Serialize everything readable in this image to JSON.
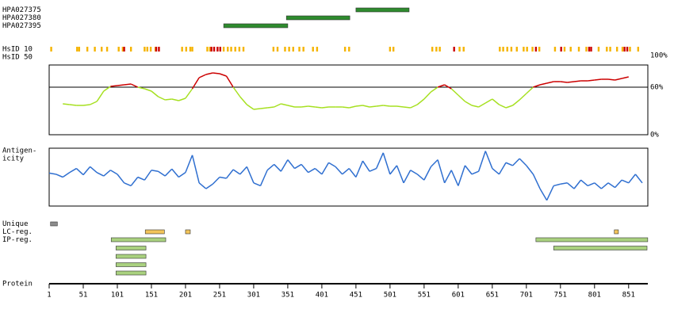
{
  "chart_data": [
    {
      "type": "ranges",
      "rows": [
        {
          "name": "HPA027375",
          "color": "#2e8b2e",
          "ranges": [
            [
              451,
              529
            ]
          ]
        },
        {
          "name": "HPA027380",
          "color": "#2e8b2e",
          "ranges": [
            [
              349,
              442
            ]
          ]
        },
        {
          "type": "x",
          "name": "HPA027395",
          "color": "#2e8b2e",
          "ranges": [
            [
              257,
              351
            ]
          ]
        }
      ]
    },
    {
      "type": "strip",
      "title": "HsID 10",
      "series": [
        {
          "color": "#f5b400",
          "values": [
            4,
            42,
            45,
            57,
            68,
            78,
            86,
            103,
            109,
            121,
            141,
            145,
            150,
            157,
            196,
            202,
            208,
            211,
            233,
            237,
            257,
            263,
            268,
            274,
            280,
            286,
            330,
            336,
            347,
            353,
            359,
            368,
            374,
            388,
            394,
            435,
            441,
            501,
            506,
            563,
            569,
            574,
            603,
            609,
            662,
            667,
            673,
            679,
            687,
            697,
            702,
            710,
            720,
            743,
            757,
            766,
            778,
            789,
            807,
            819,
            824,
            834,
            842,
            853,
            865
          ]
        },
        {
          "color": "#cc0000",
          "values": [
            111,
            158,
            162,
            239,
            243,
            248,
            252,
            595,
            715,
            752,
            793,
            796,
            845,
            849
          ]
        }
      ]
    },
    {
      "type": "line",
      "title": "HsID 50",
      "ylim": [
        0,
        100
      ],
      "yticks": [
        {
          "value": 100,
          "label": "100%"
        },
        {
          "value": 60,
          "label": "60%"
        },
        {
          "value": 0,
          "label": "0%"
        }
      ],
      "colors": [
        "#cc0000",
        "#a6e020"
      ],
      "x": [
        21,
        31,
        41,
        51,
        61,
        71,
        81,
        91,
        101,
        111,
        121,
        131,
        141,
        151,
        161,
        171,
        181,
        191,
        201,
        211,
        221,
        231,
        241,
        251,
        261,
        271,
        281,
        291,
        301,
        311,
        321,
        331,
        341,
        351,
        361,
        371,
        381,
        391,
        401,
        411,
        421,
        431,
        441,
        451,
        461,
        471,
        481,
        491,
        501,
        511,
        521,
        531,
        541,
        551,
        561,
        571,
        581,
        591,
        601,
        611,
        621,
        631,
        641,
        651,
        661,
        671,
        681,
        691,
        701,
        711,
        721,
        731,
        741,
        751,
        761,
        771,
        781,
        791,
        801,
        811,
        821,
        831,
        841,
        851
      ],
      "values": [
        39,
        38,
        37,
        37,
        38,
        42,
        55,
        61,
        62,
        63,
        64,
        60,
        58,
        55,
        48,
        44,
        45,
        43,
        46,
        58,
        72,
        76,
        78,
        77,
        74,
        60,
        48,
        38,
        32,
        33,
        34,
        35,
        39,
        37,
        35,
        35,
        36,
        35,
        34,
        35,
        35,
        35,
        34,
        36,
        37,
        35,
        36,
        37,
        36,
        36,
        35,
        34,
        38,
        45,
        54,
        60,
        63,
        58,
        50,
        42,
        37,
        35,
        40,
        45,
        38,
        34,
        37,
        44,
        52,
        60,
        63,
        65,
        67,
        67,
        66,
        67,
        68,
        68,
        69,
        70,
        70,
        69,
        71,
        73
      ]
    },
    {
      "type": "line",
      "title": [
        "Antigen-",
        "icity"
      ],
      "ylim": [
        0,
        100
      ],
      "color": "#2f6fd0",
      "x": [
        1,
        11,
        21,
        31,
        41,
        51,
        61,
        71,
        81,
        91,
        101,
        111,
        121,
        131,
        141,
        151,
        161,
        171,
        181,
        191,
        201,
        211,
        221,
        231,
        241,
        251,
        261,
        271,
        281,
        291,
        301,
        311,
        321,
        331,
        341,
        351,
        361,
        371,
        381,
        391,
        401,
        411,
        421,
        431,
        441,
        451,
        461,
        471,
        481,
        491,
        501,
        511,
        521,
        531,
        541,
        551,
        561,
        571,
        581,
        591,
        601,
        611,
        621,
        631,
        641,
        651,
        661,
        671,
        681,
        691,
        701,
        711,
        721,
        731,
        741,
        751,
        761,
        771,
        781,
        791,
        801,
        811,
        821,
        831,
        841,
        851,
        861,
        871
      ],
      "values": [
        57,
        55,
        50,
        58,
        65,
        54,
        68,
        58,
        52,
        62,
        55,
        40,
        35,
        50,
        45,
        62,
        60,
        52,
        64,
        50,
        58,
        88,
        40,
        30,
        38,
        50,
        48,
        63,
        55,
        68,
        40,
        35,
        62,
        72,
        60,
        80,
        65,
        72,
        58,
        65,
        55,
        75,
        68,
        55,
        65,
        50,
        78,
        60,
        65,
        92,
        55,
        70,
        40,
        62,
        55,
        45,
        68,
        80,
        40,
        62,
        35,
        70,
        55,
        60,
        95,
        65,
        55,
        75,
        70,
        82,
        70,
        55,
        30,
        10,
        35,
        38,
        40,
        30,
        45,
        35,
        40,
        30,
        40,
        32,
        45,
        40,
        55,
        40
      ]
    },
    {
      "type": "ranges",
      "rows": [
        {
          "name": "Unique",
          "color": "#8c8c8c",
          "ranges": [
            [
              3,
              13
            ]
          ]
        },
        {
          "name": "LC-reg.",
          "color": "#f2c45a",
          "ranges": [
            [
              142,
              170
            ],
            [
              201,
              208
            ],
            [
              830,
              836
            ]
          ]
        },
        {
          "name": "IP-reg.",
          "color": "#a9d17f",
          "ranges": [
            [
              92,
              172
            ],
            [
              99,
              143
            ],
            [
              99,
              143
            ],
            [
              99,
              143
            ],
            [
              99,
              143
            ],
            [
              715,
              879
            ],
            [
              741,
              878
            ]
          ]
        }
      ]
    },
    {
      "type": "axis",
      "title": "Protein",
      "xlim": [
        1,
        878
      ],
      "xticks": [
        1,
        51,
        101,
        151,
        201,
        251,
        301,
        351,
        401,
        451,
        501,
        551,
        601,
        651,
        701,
        751,
        801,
        851
      ]
    }
  ]
}
